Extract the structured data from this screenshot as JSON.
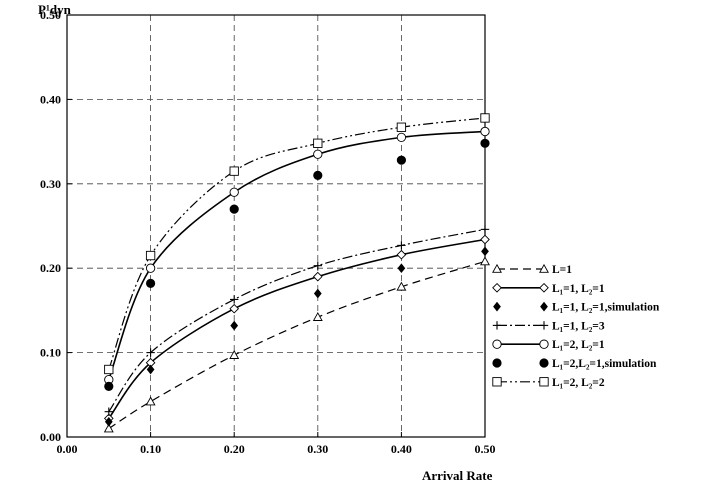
{
  "chart_data": {
    "type": "line",
    "xlabel": "Arrival Rate",
    "ylabel": "P¹dyn",
    "xlim": [
      0.0,
      0.5
    ],
    "ylim": [
      0.0,
      0.5
    ],
    "x_ticks": [
      "0.00",
      "0.10",
      "0.20",
      "0.30",
      "0.40",
      "0.50"
    ],
    "y_ticks": [
      "0.00",
      "0.10",
      "0.20",
      "0.30",
      "0.40",
      "0.50"
    ],
    "grid": true,
    "legend_position": "right",
    "series": [
      {
        "name": "L=1",
        "marker": "triangle-open",
        "line": "dashed",
        "x": [
          0.05,
          0.1,
          0.2,
          0.3,
          0.4,
          0.5
        ],
        "y": [
          0.01,
          0.042,
          0.097,
          0.142,
          0.178,
          0.208
        ]
      },
      {
        "name": "L₁=1, L₂=1",
        "marker": "diamond-open",
        "line": "solid",
        "x": [
          0.05,
          0.1,
          0.2,
          0.3,
          0.4,
          0.5
        ],
        "y": [
          0.022,
          0.088,
          0.152,
          0.19,
          0.216,
          0.234
        ]
      },
      {
        "name": "L₁=1, L₂=1,simulation",
        "marker": "diamond-filled",
        "line": "none",
        "x": [
          0.05,
          0.1,
          0.2,
          0.3,
          0.4,
          0.5
        ],
        "y": [
          0.018,
          0.08,
          0.132,
          0.17,
          0.2,
          0.22
        ]
      },
      {
        "name": "L₁=1, L₂=3",
        "marker": "plus",
        "line": "dashdot",
        "x": [
          0.05,
          0.1,
          0.2,
          0.3,
          0.4,
          0.5
        ],
        "y": [
          0.03,
          0.1,
          0.163,
          0.203,
          0.227,
          0.246
        ]
      },
      {
        "name": "L₁=2, L₂=1",
        "marker": "circle-open",
        "line": "solid",
        "x": [
          0.05,
          0.1,
          0.2,
          0.3,
          0.4,
          0.5
        ],
        "y": [
          0.068,
          0.2,
          0.29,
          0.335,
          0.355,
          0.362
        ]
      },
      {
        "name": "L₁=2,L₂=1,simulation",
        "marker": "circle-filled",
        "line": "none",
        "x": [
          0.05,
          0.1,
          0.2,
          0.3,
          0.4,
          0.5
        ],
        "y": [
          0.06,
          0.182,
          0.27,
          0.31,
          0.328,
          0.348
        ]
      },
      {
        "name": "L₁=2, L₂=2",
        "marker": "square-open",
        "line": "dashdotdot",
        "x": [
          0.05,
          0.1,
          0.2,
          0.3,
          0.4,
          0.5
        ],
        "y": [
          0.08,
          0.215,
          0.315,
          0.348,
          0.367,
          0.378
        ]
      }
    ]
  }
}
